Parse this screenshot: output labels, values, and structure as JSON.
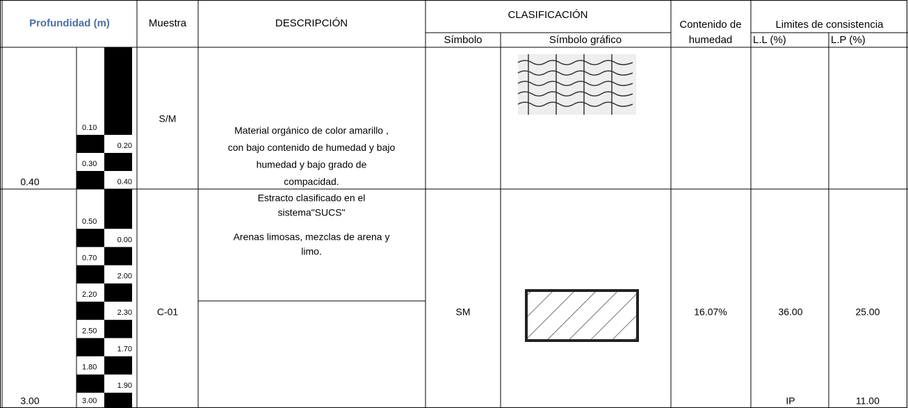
{
  "header": {
    "profundidad": "Profundidad (m)",
    "muestra": "Muestra",
    "descripcion": "DESCRIPCIÓN",
    "clasificacion": "CLASIFICACIÓN",
    "simbolo": "Símbolo",
    "simbolo_grafico": "Símbolo gráfico",
    "contenido": [
      "Contenido de",
      "humedad"
    ],
    "limites": "Limites de consistencia",
    "ll": "L.L (%)",
    "lp": "L.P (%)"
  },
  "rows": [
    {
      "depth": "0.40",
      "scale": [
        "0.10",
        "0.20",
        "0.30",
        "0.40"
      ],
      "muestra": "S/M",
      "descripcion": [
        "Material orgánico de  color amarillo ,",
        "con bajo contenido de humedad y bajo",
        "humedad y bajo  grado de",
        "compacidad."
      ]
    },
    {
      "depth": "3.00",
      "scale": [
        "0.50",
        "0.00",
        "0.70",
        "2.00",
        "2.20",
        "2.30",
        "2.50",
        "1.70",
        "1.80",
        "1.90",
        "3.00"
      ],
      "muestra": "C-01",
      "descripcion": [
        "Estracto clasificado en el",
        "sistema\"SUCS\""
      ],
      "descripcion2": [
        "Arenas limosas, mezclas de arena y",
        "limo."
      ],
      "simbolo": "SM",
      "humedad": "16.07%",
      "ll": "36.00",
      "lp": "25.00",
      "ip_label": "IP",
      "ip": "11.00"
    }
  ]
}
